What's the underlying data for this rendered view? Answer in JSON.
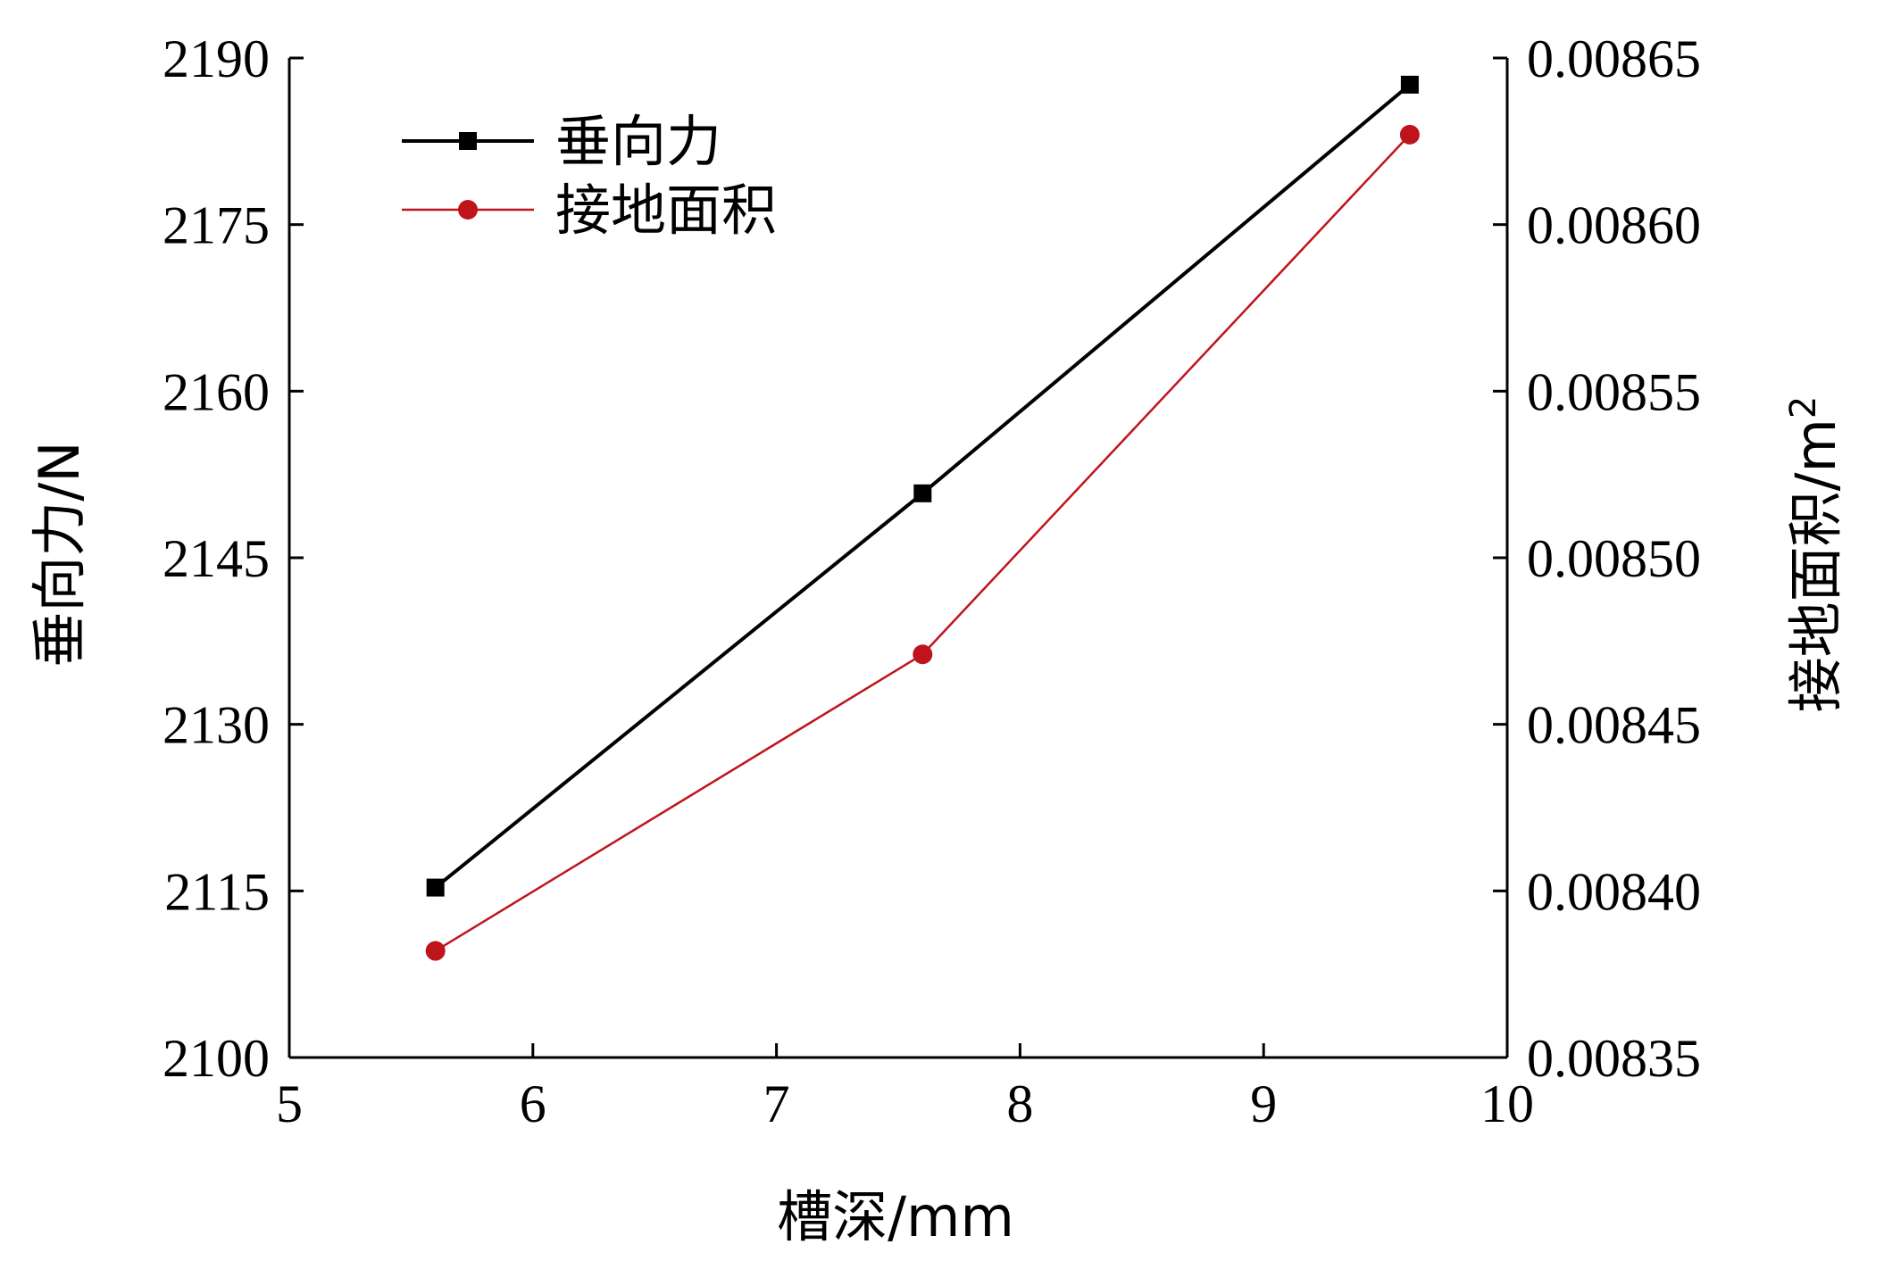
{
  "chart_data": {
    "type": "line",
    "xlabel": "槽深/mm",
    "ylabel_left": "垂向力/N",
    "ylabel_right": "接地面积/m",
    "ylabel_right_sup": "2",
    "x_ticks": [
      "5",
      "6",
      "7",
      "8",
      "9",
      "10"
    ],
    "x_tick_values": [
      5,
      6,
      7,
      8,
      9,
      10
    ],
    "y_left_ticks": [
      "2100",
      "2115",
      "2130",
      "2145",
      "2160",
      "2175",
      "2190"
    ],
    "y_left_tick_values": [
      2100,
      2115,
      2130,
      2145,
      2160,
      2175,
      2190
    ],
    "y_right_ticks": [
      "0.00835",
      "0.00840",
      "0.00845",
      "0.00850",
      "0.00855",
      "0.00860",
      "0.00865"
    ],
    "y_right_tick_values": [
      0.00835,
      0.0084,
      0.00845,
      0.0085,
      0.00855,
      0.0086,
      0.00865
    ],
    "xlim": [
      5,
      10
    ],
    "ylim_left": [
      2100,
      2190
    ],
    "ylim_right": [
      0.00835,
      0.00865
    ],
    "legend_position": "top-left",
    "grid": false,
    "series": [
      {
        "name": "垂向力",
        "axis": "left",
        "color": "#000000",
        "marker": "square",
        "x": [
          5.6,
          7.6,
          9.6
        ],
        "values": [
          2115.3,
          2150.8,
          2187.6
        ]
      },
      {
        "name": "接地面积",
        "axis": "right",
        "color": "#c0141c",
        "marker": "circle",
        "x": [
          5.6,
          7.6,
          9.6
        ],
        "values": [
          0.008382,
          0.008471,
          0.008627
        ]
      }
    ]
  }
}
